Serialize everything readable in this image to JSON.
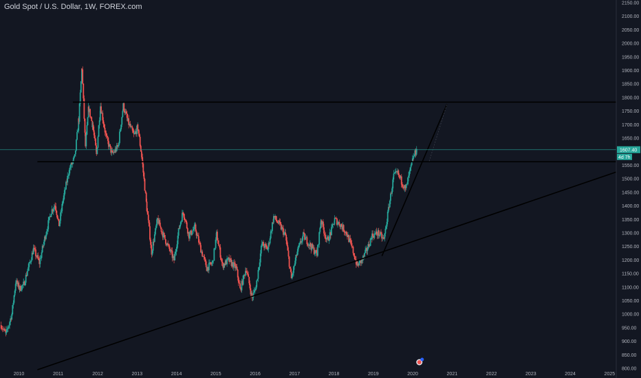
{
  "chart_data": {
    "type": "candlestick",
    "title": "Gold Spot / U.S. Dollar, 1W, FOREX.com",
    "y_ticks": [
      "2150.00",
      "2100.00",
      "2050.00",
      "2000.00",
      "1950.00",
      "1900.00",
      "1850.00",
      "1800.00",
      "1750.00",
      "1700.00",
      "1650.00",
      "1600.00",
      "1550.00",
      "1500.00",
      "1450.00",
      "1400.00",
      "1350.00",
      "1300.00",
      "1250.00",
      "1200.00",
      "1150.00",
      "1100.00",
      "1050.00",
      "1000.00",
      "950.00",
      "900.00",
      "850.00",
      "800.00"
    ],
    "x_ticks": [
      "2010",
      "2011",
      "2012",
      "2013",
      "2014",
      "2015",
      "2016",
      "2017",
      "2018",
      "2019",
      "2020",
      "2021",
      "2022",
      "2023",
      "2024",
      "2025"
    ],
    "ylim": [
      795,
      2160
    ],
    "xlim": [
      2009.55,
      2025.2
    ],
    "current_price": "1607.40",
    "countdown": "4d 7h",
    "price_path": [
      [
        2009.58,
        960
      ],
      [
        2009.7,
        925
      ],
      [
        2009.85,
        1000
      ],
      [
        2009.95,
        1120
      ],
      [
        2010.05,
        1095
      ],
      [
        2010.15,
        1110
      ],
      [
        2010.25,
        1160
      ],
      [
        2010.4,
        1240
      ],
      [
        2010.55,
        1190
      ],
      [
        2010.7,
        1290
      ],
      [
        2010.85,
        1380
      ],
      [
        2010.95,
        1405
      ],
      [
        2011.05,
        1330
      ],
      [
        2011.15,
        1420
      ],
      [
        2011.3,
        1530
      ],
      [
        2011.45,
        1580
      ],
      [
        2011.55,
        1720
      ],
      [
        2011.63,
        1910
      ],
      [
        2011.72,
        1620
      ],
      [
        2011.8,
        1760
      ],
      [
        2011.9,
        1700
      ],
      [
        2012.0,
        1590
      ],
      [
        2012.1,
        1770
      ],
      [
        2012.25,
        1650
      ],
      [
        2012.4,
        1590
      ],
      [
        2012.55,
        1620
      ],
      [
        2012.68,
        1770
      ],
      [
        2012.8,
        1710
      ],
      [
        2012.95,
        1660
      ],
      [
        2013.05,
        1690
      ],
      [
        2013.15,
        1580
      ],
      [
        2013.28,
        1390
      ],
      [
        2013.4,
        1230
      ],
      [
        2013.55,
        1350
      ],
      [
        2013.7,
        1290
      ],
      [
        2013.85,
        1240
      ],
      [
        2013.97,
        1200
      ],
      [
        2014.1,
        1320
      ],
      [
        2014.2,
        1380
      ],
      [
        2014.35,
        1290
      ],
      [
        2014.5,
        1320
      ],
      [
        2014.65,
        1240
      ],
      [
        2014.8,
        1170
      ],
      [
        2014.95,
        1190
      ],
      [
        2015.05,
        1295
      ],
      [
        2015.2,
        1180
      ],
      [
        2015.35,
        1200
      ],
      [
        2015.55,
        1170
      ],
      [
        2015.65,
        1090
      ],
      [
        2015.8,
        1170
      ],
      [
        2015.95,
        1060
      ],
      [
        2016.05,
        1100
      ],
      [
        2016.2,
        1260
      ],
      [
        2016.35,
        1240
      ],
      [
        2016.5,
        1360
      ],
      [
        2016.65,
        1330
      ],
      [
        2016.8,
        1290
      ],
      [
        2016.95,
        1130
      ],
      [
        2017.1,
        1230
      ],
      [
        2017.25,
        1290
      ],
      [
        2017.45,
        1250
      ],
      [
        2017.6,
        1220
      ],
      [
        2017.7,
        1350
      ],
      [
        2017.85,
        1270
      ],
      [
        2017.95,
        1300
      ],
      [
        2018.05,
        1350
      ],
      [
        2018.2,
        1330
      ],
      [
        2018.35,
        1300
      ],
      [
        2018.5,
        1240
      ],
      [
        2018.62,
        1180
      ],
      [
        2018.75,
        1200
      ],
      [
        2018.9,
        1250
      ],
      [
        2019.0,
        1290
      ],
      [
        2019.15,
        1300
      ],
      [
        2019.3,
        1275
      ],
      [
        2019.45,
        1420
      ],
      [
        2019.55,
        1510
      ],
      [
        2019.65,
        1520
      ],
      [
        2019.75,
        1490
      ],
      [
        2019.85,
        1460
      ],
      [
        2019.95,
        1520
      ],
      [
        2020.05,
        1580
      ],
      [
        2020.13,
        1607
      ]
    ]
  },
  "colors": {
    "background": "#131722",
    "up": "#26a69a",
    "down": "#ef5350",
    "drawing": "#000000",
    "price_line": "#26a69a",
    "axis_text": "#b2b5be"
  },
  "drawings": [
    {
      "name": "resistance-line-top",
      "x1": 2011.4,
      "y1": 1783,
      "x2": 2025.2,
      "y2": 1783
    },
    {
      "name": "support-line-middle",
      "x1": 2010.5,
      "y1": 1563,
      "x2": 2025.2,
      "y2": 1563
    },
    {
      "name": "long-trendline",
      "x1": 2010.5,
      "y1": 795,
      "x2": 2025.2,
      "y2": 1525
    },
    {
      "name": "steep-trendline",
      "x1": 2019.25,
      "y1": 1215,
      "x2": 2020.9,
      "y2": 1775
    }
  ],
  "event_icon": "news-flag-icon"
}
